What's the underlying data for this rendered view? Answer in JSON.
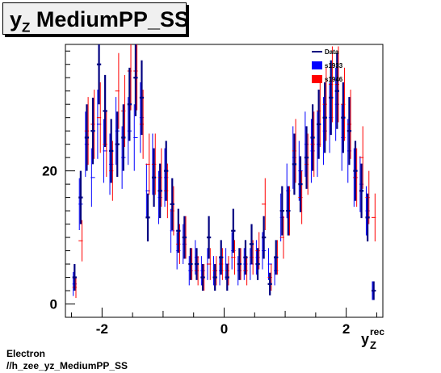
{
  "title": "y_Z MediumPP_SS",
  "footer": {
    "line1": "Electron",
    "line2": "//h_zee_yz_MediumPP_SS"
  },
  "colors": {
    "data": "#000080",
    "s1933": "#0000ff",
    "s1946": "#ff0000",
    "frame": "#000000"
  },
  "chart_data": {
    "type": "scatter",
    "title": "y_Z MediumPP_SS",
    "xlabel_main": "y",
    "xlabel_sub": "Z",
    "xlabel_sup": "rec",
    "ylabel": "",
    "xlim": [
      -2.6,
      2.6
    ],
    "ylim": [
      -2,
      39
    ],
    "x_ticks": [
      -2,
      0,
      2
    ],
    "x_tick_labels": [
      "-2",
      "0",
      "2"
    ],
    "y_ticks": [
      0,
      20
    ],
    "y_tick_labels": [
      "0",
      "20"
    ],
    "grid": false,
    "legend_position": "top-right",
    "bin_half_width": 0.05,
    "legend": [
      {
        "name": "Data",
        "style": "line",
        "color": "#000080"
      },
      {
        "name": "s1933",
        "style": "box",
        "color": "#0000ff"
      },
      {
        "name": "s1946",
        "style": "box",
        "color": "#ff0000"
      }
    ],
    "series": [
      {
        "name": "Data",
        "color": "#000080",
        "x": [
          -2.45,
          -2.35,
          -2.25,
          -2.15,
          -2.05,
          -1.95,
          -1.85,
          -1.75,
          -1.65,
          -1.55,
          -1.45,
          -1.35,
          -1.25,
          -1.15,
          -1.05,
          -0.95,
          -0.85,
          -0.75,
          -0.65,
          -0.55,
          -0.45,
          -0.35,
          -0.25,
          -0.15,
          -0.05,
          0.05,
          0.15,
          0.25,
          0.35,
          0.45,
          0.55,
          0.65,
          0.75,
          0.85,
          0.95,
          1.05,
          1.15,
          1.25,
          1.35,
          1.45,
          1.55,
          1.65,
          1.75,
          1.85,
          1.95,
          2.05,
          2.15,
          2.25,
          2.35,
          2.45
        ],
        "y": [
          4,
          16,
          25,
          26,
          36,
          29,
          23,
          24,
          25,
          30,
          34,
          31,
          13,
          19,
          17,
          20,
          15,
          11,
          10,
          6,
          6,
          4,
          10,
          4,
          7,
          4,
          11,
          6,
          7,
          9,
          6,
          10,
          3,
          7,
          14,
          14,
          21,
          18,
          22,
          25,
          27,
          28,
          31,
          32,
          28,
          26,
          20,
          17,
          13,
          2
        ],
        "err": [
          2,
          4,
          5,
          5,
          6,
          5.4,
          4.8,
          4.9,
          5,
          5.5,
          5.8,
          5.6,
          3.6,
          4.4,
          4.1,
          4.5,
          3.9,
          3.3,
          3.2,
          2.4,
          2.4,
          2,
          3.2,
          2,
          2.6,
          2,
          3.3,
          2.4,
          2.6,
          3,
          2.4,
          3.2,
          1.7,
          2.6,
          3.7,
          3.7,
          4.6,
          4.2,
          4.7,
          5,
          5.2,
          5.3,
          5.6,
          5.7,
          5.3,
          5.1,
          4.5,
          4.1,
          3.6,
          1.4
        ]
      },
      {
        "name": "s1933",
        "color": "#0000ff",
        "x": [
          -2.45,
          -2.35,
          -2.25,
          -2.15,
          -2.05,
          -1.95,
          -1.85,
          -1.75,
          -1.65,
          -1.55,
          -1.45,
          -1.35,
          -1.25,
          -1.15,
          -1.05,
          -0.95,
          -0.85,
          -0.75,
          -0.65,
          -0.55,
          -0.45,
          -0.35,
          -0.25,
          -0.15,
          -0.05,
          0.05,
          0.15,
          0.25,
          0.35,
          0.45,
          0.55,
          0.65,
          0.75,
          0.85,
          0.95,
          1.05,
          1.15,
          1.25,
          1.35,
          1.45,
          1.55,
          1.65,
          1.75,
          1.85,
          1.95,
          2.05,
          2.15,
          2.25,
          2.35,
          2.45
        ],
        "y": [
          3,
          15,
          24,
          19,
          27,
          23,
          21,
          26,
          22,
          26,
          25,
          28,
          17,
          21,
          16,
          19,
          11,
          8,
          9,
          5,
          7,
          5,
          6,
          5,
          5,
          6,
          8,
          5,
          6,
          6,
          7,
          8,
          6,
          5,
          13,
          17,
          22,
          20,
          24,
          23,
          24,
          26,
          28,
          30,
          25,
          23,
          19,
          18,
          14,
          2
        ],
        "err": [
          1.8,
          3.9,
          4.9,
          4.4,
          5.2,
          4.8,
          4.6,
          5.1,
          4.7,
          5.1,
          5,
          5.3,
          4.1,
          4.6,
          4,
          4.4,
          3.3,
          2.8,
          3,
          2.2,
          2.6,
          2.2,
          2.4,
          2.2,
          2.2,
          2.4,
          2.8,
          2.2,
          2.4,
          2.4,
          2.6,
          2.8,
          2.4,
          2.2,
          3.6,
          4.1,
          4.7,
          4.5,
          4.9,
          4.8,
          4.9,
          5.1,
          5.3,
          5.5,
          5,
          4.8,
          4.4,
          4.2,
          3.7,
          1.4
        ]
      },
      {
        "name": "s1946",
        "color": "#ff0000",
        "x": [
          -2.45,
          -2.35,
          -2.25,
          -2.15,
          -2.05,
          -1.95,
          -1.85,
          -1.75,
          -1.65,
          -1.55,
          -1.45,
          -1.35,
          -1.25,
          -1.15,
          -1.05,
          -0.95,
          -0.85,
          -0.75,
          -0.65,
          -0.55,
          -0.45,
          -0.35,
          -0.25,
          -0.15,
          -0.05,
          0.05,
          0.15,
          0.25,
          0.35,
          0.45,
          0.55,
          0.65,
          0.75,
          0.85,
          0.95,
          1.05,
          1.15,
          1.25,
          1.35,
          1.45,
          1.55,
          1.65,
          1.75,
          1.85,
          1.95,
          2.05,
          2.15,
          2.25,
          2.35,
          2.45
        ],
        "y": [
          2.5,
          9.5,
          26,
          27,
          28,
          24,
          20,
          32,
          29,
          35,
          35,
          27,
          21,
          21,
          19,
          17,
          14,
          9,
          10,
          6,
          5,
          4,
          6,
          5,
          6,
          5,
          7,
          6,
          5,
          7,
          8,
          15,
          4,
          7,
          10,
          14,
          23,
          16,
          21,
          24,
          29,
          30,
          33,
          33,
          30,
          27,
          19,
          22,
          16,
          13
        ],
        "err": [
          1.6,
          3.1,
          5.1,
          5.2,
          5.3,
          4.9,
          4.5,
          5.7,
          5.4,
          5.9,
          5.9,
          5.2,
          4.6,
          4.6,
          4.4,
          4.1,
          3.7,
          3,
          3.2,
          2.4,
          2.2,
          2,
          2.4,
          2.2,
          2.4,
          2.2,
          2.6,
          2.4,
          2.2,
          2.6,
          2.8,
          3.9,
          2,
          2.6,
          3.2,
          3.7,
          4.8,
          4,
          4.6,
          4.9,
          5.4,
          5.5,
          5.7,
          5.7,
          5.5,
          5.2,
          4.4,
          4.7,
          4,
          3.6
        ]
      }
    ]
  }
}
